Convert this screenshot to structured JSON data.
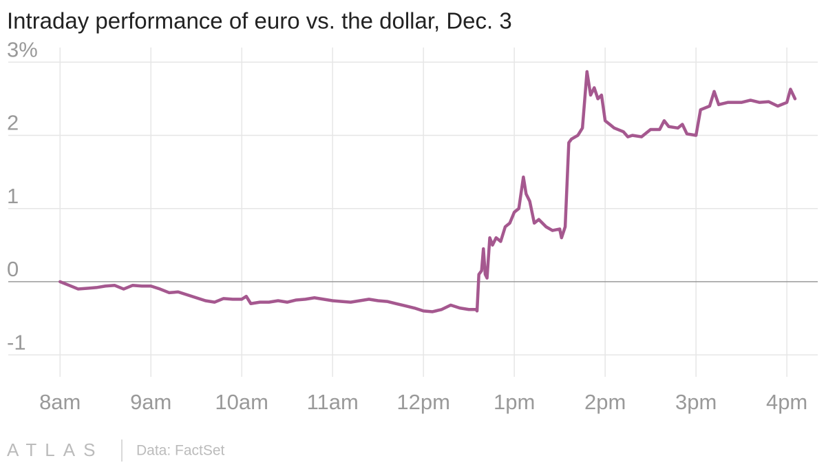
{
  "chart_data": {
    "type": "line",
    "title": "Intraday performance of euro vs. the dollar, Dec. 3",
    "source": "Data: FactSet",
    "brand": "ATLAS",
    "grid": true,
    "xlim": [
      7.43,
      16.34
    ],
    "ylim": [
      -1.3,
      3.2
    ],
    "xticks": [
      {
        "value": 8,
        "label": "8am"
      },
      {
        "value": 9,
        "label": "9am"
      },
      {
        "value": 10,
        "label": "10am"
      },
      {
        "value": 11,
        "label": "11am"
      },
      {
        "value": 12,
        "label": "12pm"
      },
      {
        "value": 13,
        "label": "1pm"
      },
      {
        "value": 14,
        "label": "2pm"
      },
      {
        "value": 15,
        "label": "3pm"
      },
      {
        "value": 16,
        "label": "4pm"
      }
    ],
    "yticks": [
      {
        "value": 3,
        "label": "3%"
      },
      2,
      1,
      0,
      -1
    ],
    "x": [
      8.0,
      8.1,
      8.2,
      8.3,
      8.4,
      8.5,
      8.6,
      8.7,
      8.8,
      8.9,
      9.0,
      9.1,
      9.2,
      9.3,
      9.4,
      9.5,
      9.6,
      9.7,
      9.8,
      9.9,
      10.0,
      10.05,
      10.1,
      10.2,
      10.3,
      10.4,
      10.5,
      10.6,
      10.7,
      10.8,
      10.9,
      11.0,
      11.1,
      11.2,
      11.3,
      11.4,
      11.5,
      11.6,
      11.7,
      11.8,
      11.9,
      12.0,
      12.1,
      12.2,
      12.3,
      12.4,
      12.5,
      12.58,
      12.59,
      12.61,
      12.64,
      12.66,
      12.68,
      12.7,
      12.73,
      12.76,
      12.8,
      12.85,
      12.9,
      12.95,
      13.0,
      13.05,
      13.1,
      13.13,
      13.17,
      13.22,
      13.27,
      13.35,
      13.42,
      13.5,
      13.52,
      13.56,
      13.6,
      13.63,
      13.7,
      13.75,
      13.8,
      13.84,
      13.88,
      13.92,
      13.96,
      14.0,
      14.05,
      14.1,
      14.2,
      14.25,
      14.3,
      14.4,
      14.5,
      14.6,
      14.65,
      14.7,
      14.8,
      14.85,
      14.9,
      15.0,
      15.05,
      15.15,
      15.2,
      15.25,
      15.35,
      15.5,
      15.6,
      15.7,
      15.8,
      15.9,
      16.0,
      16.04,
      16.09
    ],
    "series": [
      {
        "name": "Euro vs. dollar",
        "color": "#a5588f",
        "values": [
          0,
          -0.05,
          -0.1,
          -0.09,
          -0.08,
          -0.06,
          -0.05,
          -0.1,
          -0.05,
          -0.06,
          -0.06,
          -0.1,
          -0.15,
          -0.14,
          -0.18,
          -0.22,
          -0.26,
          -0.28,
          -0.23,
          -0.24,
          -0.24,
          -0.2,
          -0.3,
          -0.28,
          -0.28,
          -0.26,
          -0.28,
          -0.25,
          -0.24,
          -0.22,
          -0.24,
          -0.26,
          -0.27,
          -0.28,
          -0.26,
          -0.24,
          -0.26,
          -0.27,
          -0.3,
          -0.33,
          -0.36,
          -0.4,
          -0.41,
          -0.38,
          -0.32,
          -0.36,
          -0.38,
          -0.38,
          -0.4,
          0.1,
          0.15,
          0.45,
          0.1,
          0.05,
          0.6,
          0.5,
          0.6,
          0.55,
          0.75,
          0.8,
          0.95,
          1.0,
          1.43,
          1.2,
          1.1,
          0.8,
          0.85,
          0.75,
          0.7,
          0.72,
          0.6,
          0.75,
          1.9,
          1.95,
          2.0,
          2.1,
          2.87,
          2.55,
          2.65,
          2.5,
          2.55,
          2.2,
          2.15,
          2.1,
          2.05,
          1.98,
          2.0,
          1.98,
          2.08,
          2.08,
          2.2,
          2.12,
          2.1,
          2.15,
          2.02,
          2.0,
          2.35,
          2.4,
          2.6,
          2.42,
          2.45,
          2.45,
          2.48,
          2.45,
          2.46,
          2.4,
          2.45,
          2.63,
          2.5
        ]
      }
    ]
  }
}
